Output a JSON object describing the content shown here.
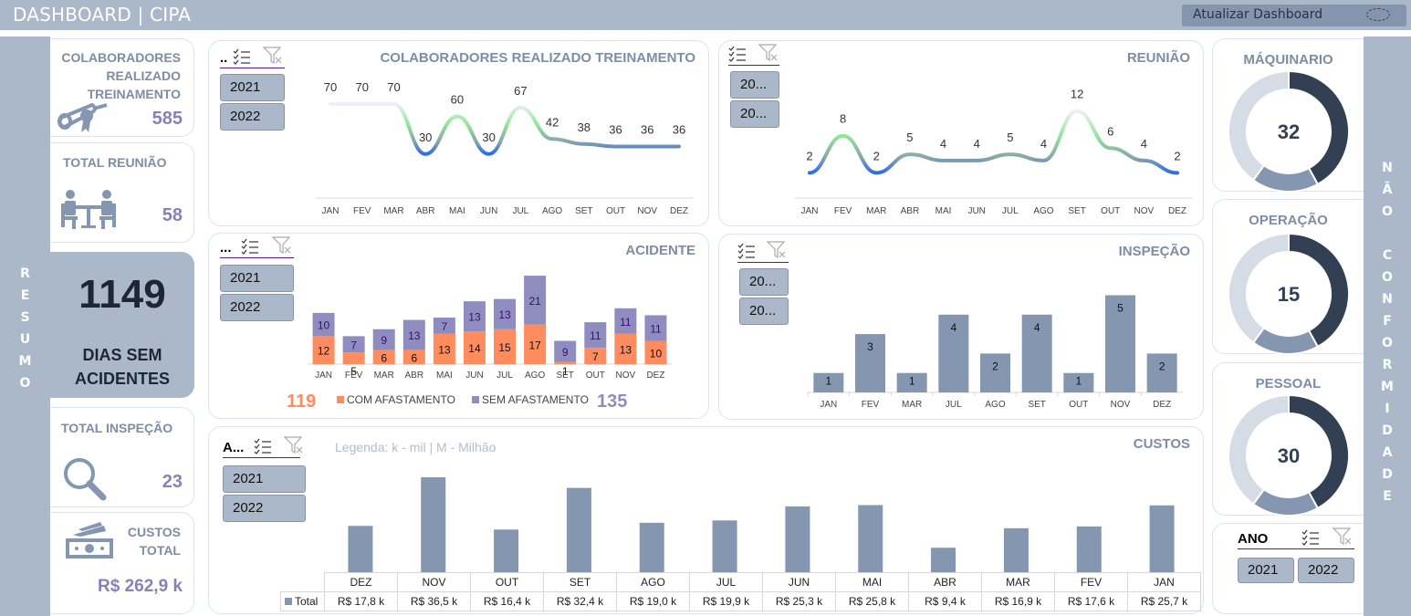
{
  "app": {
    "title": "DASHBOARD | CIPA",
    "refresh_label": "Atualizar Dashboard"
  },
  "side_left": {
    "label": "RESUMO"
  },
  "side_right": {
    "label": "NÃO CONFORMIDADE"
  },
  "kpis": {
    "training": {
      "title_lines": [
        "COLABORADORES",
        "REALIZADO",
        "TREINAMENTO"
      ],
      "value": "585",
      "icon": "diploma-icon"
    },
    "meetings": {
      "title": "TOTAL REUNIÃO",
      "value": "58",
      "icon": "meeting-icon"
    },
    "days_no_accident": {
      "value": "1149",
      "label_lines": [
        "DIAS SEM",
        "ACIDENTES"
      ]
    },
    "inspections": {
      "title": "TOTAL INSPEÇÃO",
      "value": "23",
      "icon": "magnifier-icon"
    },
    "costs": {
      "title_lines": [
        "CUSTOS",
        "TOTAL"
      ],
      "value": "R$ 262,9 k",
      "icon": "money-icon"
    }
  },
  "slicers": {
    "training": {
      "header": "..",
      "items": [
        "2021",
        "2022"
      ]
    },
    "meetings": {
      "header": "",
      "items": [
        "20...",
        "20..."
      ]
    },
    "accidents": {
      "header": "...",
      "items": [
        "2021",
        "2022"
      ]
    },
    "inspections": {
      "header": "",
      "items": [
        "20...",
        "20..."
      ]
    },
    "costs": {
      "header": "A...",
      "items": [
        "2021",
        "2022"
      ]
    },
    "year": {
      "header": "ANO",
      "items": [
        "2021",
        "2022"
      ]
    }
  },
  "colors": {
    "accent": "#abb8ca",
    "title": "#7e8da6",
    "kpi_value": "#8a7fb8",
    "com_afastamento": "#ff8c5f",
    "sem_afastamento": "#8f8cbf",
    "bar": "#8496b0",
    "donut_dark": "#333f52",
    "donut_mid": "#8496b0",
    "donut_light": "#d6dce5"
  },
  "chart_data": [
    {
      "id": "training",
      "type": "line",
      "title": "COLABORADORES REALIZADO TREINAMENTO",
      "categories": [
        "JAN",
        "FEV",
        "MAR",
        "ABR",
        "MAI",
        "JUN",
        "JUL",
        "AGO",
        "SET",
        "OUT",
        "NOV",
        "DEZ"
      ],
      "values": [
        70,
        70,
        70,
        30,
        60,
        30,
        67,
        42,
        38,
        36,
        36,
        36
      ],
      "ylim": [
        0,
        80
      ],
      "grid": false
    },
    {
      "id": "meetings",
      "type": "line",
      "title": "REUNIÃO",
      "categories": [
        "JAN",
        "FEV",
        "MAR",
        "ABR",
        "MAI",
        "JUN",
        "JUL",
        "AGO",
        "SET",
        "OUT",
        "NOV",
        "DEZ"
      ],
      "values": [
        2,
        8,
        2,
        5,
        4,
        4,
        5,
        4,
        12,
        6,
        4,
        2
      ],
      "ylim": [
        0,
        14
      ],
      "grid": false
    },
    {
      "id": "accidents",
      "type": "bar",
      "stacked": true,
      "title": "ACIDENTE",
      "categories": [
        "JAN",
        "FEV",
        "MAR",
        "ABR",
        "MAI",
        "JUN",
        "JUL",
        "AGO",
        "SET",
        "OUT",
        "NOV",
        "DEZ"
      ],
      "series": [
        {
          "name": "COM AFASTAMENTO",
          "values": [
            12,
            5,
            6,
            6,
            13,
            14,
            15,
            17,
            1,
            7,
            13,
            10
          ],
          "total": "119"
        },
        {
          "name": "SEM AFASTAMENTO",
          "values": [
            10,
            7,
            9,
            13,
            7,
            13,
            13,
            21,
            9,
            11,
            11,
            11
          ],
          "total": "135"
        }
      ],
      "legend": "bottom"
    },
    {
      "id": "inspections",
      "type": "bar",
      "title": "INSPEÇÃO",
      "categories": [
        "JAN",
        "FEV",
        "MAR",
        "JUL",
        "AGO",
        "SET",
        "OUT",
        "NOV",
        "DEZ"
      ],
      "values": [
        1,
        3,
        1,
        4,
        2,
        4,
        1,
        5,
        2
      ],
      "ylim": [
        0,
        6
      ]
    },
    {
      "id": "costs",
      "type": "bar",
      "title": "CUSTOS",
      "note": "Legenda: k  - mil | M - Milhão",
      "series_name": "Total",
      "categories": [
        "DEZ",
        "NOV",
        "OUT",
        "SET",
        "AGO",
        "JUL",
        "JUN",
        "MAI",
        "ABR",
        "MAR",
        "FEV",
        "JAN"
      ],
      "values": [
        17.8,
        36.5,
        16.4,
        32.4,
        19.0,
        19.9,
        25.3,
        25.8,
        9.4,
        16.9,
        17.6,
        25.7
      ],
      "labels": [
        "R$ 17,8 k",
        "R$ 36,5 k",
        "R$ 16,4 k",
        "R$ 32,4 k",
        "R$ 19,0 k",
        "R$ 19,9 k",
        "R$ 25,3 k",
        "R$ 25,8 k",
        "R$ 9,4 k",
        "R$ 16,9 k",
        "R$ 17,6 k",
        "R$ 25,7 k"
      ],
      "ylim": [
        0,
        40
      ]
    },
    {
      "id": "maquinario",
      "type": "pie",
      "title": "MÁQUINARIO",
      "center_value": "32",
      "shares": [
        0.42,
        0.18,
        0.4
      ]
    },
    {
      "id": "operacao",
      "type": "pie",
      "title": "OPERAÇÃO",
      "center_value": "15",
      "shares": [
        0.42,
        0.18,
        0.4
      ]
    },
    {
      "id": "pessoal",
      "type": "pie",
      "title": "PESSOAL",
      "center_value": "30",
      "shares": [
        0.42,
        0.18,
        0.4
      ]
    }
  ]
}
